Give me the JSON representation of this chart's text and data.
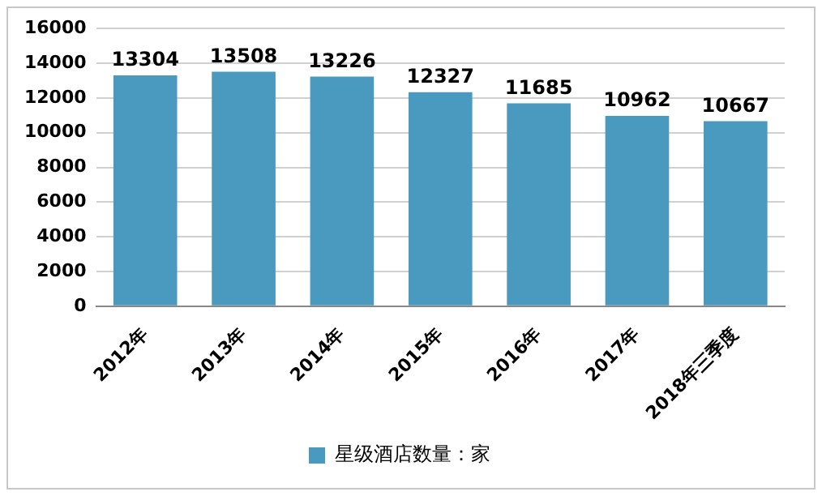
{
  "chart_data": {
    "type": "bar",
    "categories": [
      "2012年",
      "2013年",
      "2014年",
      "2015年",
      "2016年",
      "2017年",
      "2018年三季度"
    ],
    "series": [
      {
        "name": "星级酒店数量：家",
        "color": "#4a9ac0",
        "values": [
          13304,
          13508,
          13226,
          12327,
          11685,
          10962,
          10667
        ]
      }
    ],
    "ylim": [
      0,
      16000
    ],
    "yticks": [
      0,
      2000,
      4000,
      6000,
      8000,
      10000,
      12000,
      14000,
      16000
    ],
    "grid": "y",
    "legend": "bottom",
    "data_labels": true
  }
}
